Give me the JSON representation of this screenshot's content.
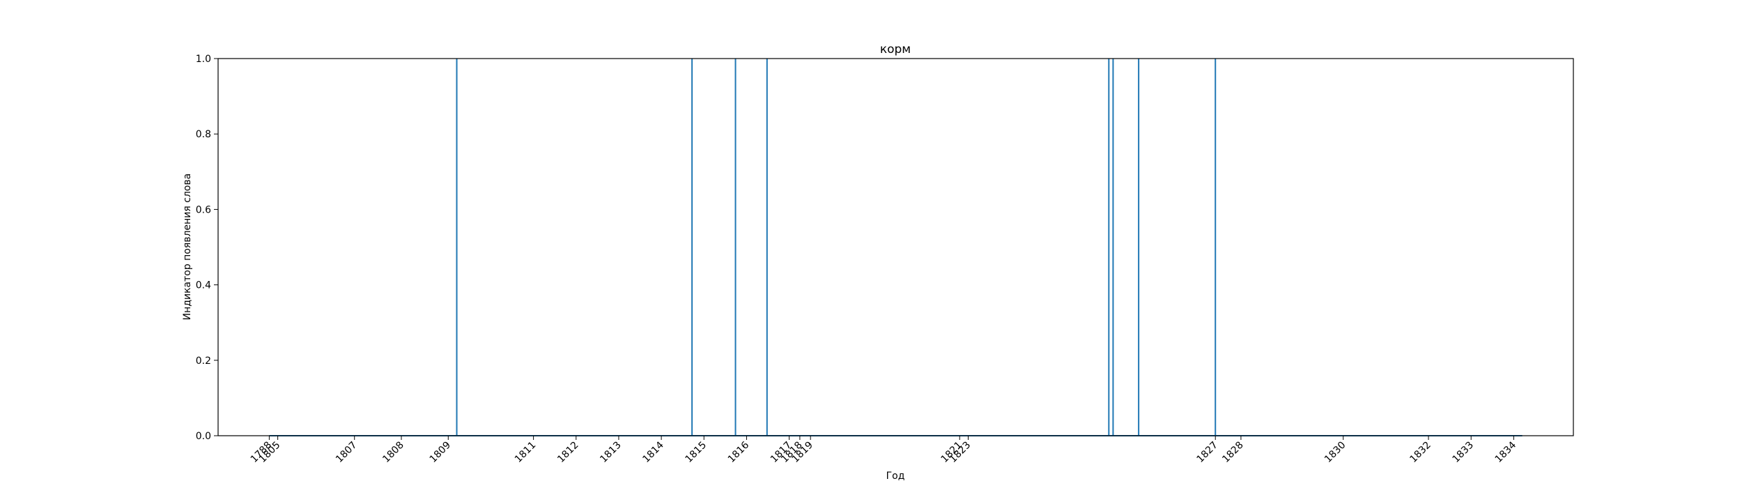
{
  "chart_data": {
    "type": "line",
    "title": "корм",
    "xlabel": "Год",
    "ylabel": "Индикатор появления слова",
    "ylim": [
      0,
      1
    ],
    "yticks": [
      "0.0",
      "0.2",
      "0.4",
      "0.6",
      "0.8",
      "1.0"
    ],
    "grid": false,
    "legend": "none",
    "series_color": "#1f77b4",
    "xticks": [
      {
        "label": "1788",
        "x": 1804.8
      },
      {
        "label": "1805",
        "x": 1805.0
      },
      {
        "label": "1807",
        "x": 1806.8
      },
      {
        "label": "1808",
        "x": 1807.9
      },
      {
        "label": "1809",
        "x": 1809.0
      },
      {
        "label": "1811",
        "x": 1811.0
      },
      {
        "label": "1812",
        "x": 1812.0
      },
      {
        "label": "1813",
        "x": 1813.0
      },
      {
        "label": "1814",
        "x": 1814.0
      },
      {
        "label": "1815",
        "x": 1815.0
      },
      {
        "label": "1816",
        "x": 1816.0
      },
      {
        "label": "1817",
        "x": 1817.0
      },
      {
        "label": "1818",
        "x": 1817.25
      },
      {
        "label": "1819",
        "x": 1817.5
      },
      {
        "label": "1821",
        "x": 1821.0
      },
      {
        "label": "1823",
        "x": 1821.2
      },
      {
        "label": "1827",
        "x": 1827.0
      },
      {
        "label": "1828",
        "x": 1827.6
      },
      {
        "label": "1830",
        "x": 1830.0
      },
      {
        "label": "1832",
        "x": 1832.0
      },
      {
        "label": "1833",
        "x": 1833.0
      },
      {
        "label": "1834",
        "x": 1834.0
      }
    ],
    "occurrences": [
      1809.2,
      1814.72,
      1815.74,
      1816.48,
      1824.5,
      1824.6,
      1825.2,
      1827.0
    ],
    "xlim": [
      1803.6,
      1835.4
    ]
  }
}
